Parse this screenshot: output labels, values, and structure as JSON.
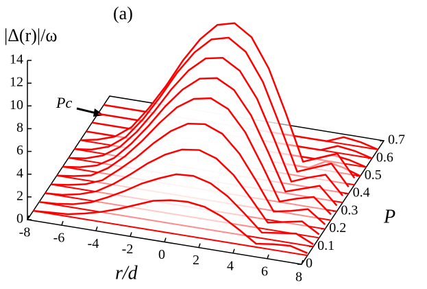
{
  "chart_data": {
    "type": "waterfall3d",
    "panel_label": "(a)",
    "z_label": "|Δ(r)|/ω",
    "x_label": "r/d",
    "y_label": "P",
    "annotation": "Pc",
    "color": "#ff0000",
    "xlim": [
      -8,
      8
    ],
    "xticks": [
      -8,
      -6,
      -4,
      -2,
      0,
      2,
      4,
      6,
      8
    ],
    "ylim": [
      0,
      0.7
    ],
    "yticks": [
      0,
      0.1,
      0.2,
      0.3,
      0.4,
      0.5,
      0.6,
      0.7
    ],
    "zlim": [
      0,
      14
    ],
    "zticks": [
      0,
      2,
      4,
      6,
      8,
      10,
      12,
      14
    ],
    "x": [
      -8,
      -7,
      -6,
      -5,
      -4,
      -3,
      -2,
      -1,
      0,
      1,
      2,
      3,
      4,
      5,
      6,
      7,
      8
    ],
    "series": [
      {
        "p": 0.65,
        "values": [
          0,
          0,
          0,
          0,
          0,
          0,
          0,
          0,
          0,
          0,
          0,
          0,
          0,
          0,
          0.6,
          0.4,
          0
        ]
      },
      {
        "p": 0.6,
        "values": [
          0,
          0,
          0,
          0,
          0,
          0,
          0,
          0,
          0,
          0,
          0,
          0,
          0,
          0,
          0.6,
          0.4,
          0
        ]
      },
      {
        "p": 0.55,
        "values": [
          0,
          0,
          0,
          0,
          0,
          0,
          0,
          0,
          0,
          0,
          0,
          0,
          0,
          0,
          0.6,
          0.4,
          0
        ]
      },
      {
        "p": 0.5,
        "values": [
          0,
          0,
          0,
          0,
          0,
          0,
          0,
          0,
          0,
          0,
          0,
          0,
          0,
          0,
          0.8,
          0.5,
          0
        ]
      },
      {
        "p": 0.45,
        "values": [
          0,
          0.3,
          0.8,
          1.9,
          3.8,
          6,
          8.5,
          10.6,
          12.1,
          12.5,
          11.5,
          9,
          5.3,
          1.3,
          1.9,
          2.5,
          0.6
        ]
      },
      {
        "p": 0.4,
        "values": [
          0,
          0.2,
          0.7,
          1.8,
          3.6,
          5.8,
          8.2,
          10.2,
          11.6,
          12,
          11,
          8.6,
          5,
          1.2,
          1.8,
          2.4,
          0.6
        ]
      },
      {
        "p": 0.35,
        "values": [
          0,
          0.2,
          0.7,
          1.7,
          3.3,
          5.3,
          7.5,
          9.4,
          10.7,
          11,
          10.1,
          7.9,
          4.6,
          1.1,
          1.7,
          2.2,
          0.6
        ]
      },
      {
        "p": 0.3,
        "values": [
          0,
          0.2,
          0.6,
          1.5,
          3,
          4.8,
          6.8,
          8.5,
          9.7,
          10,
          9.2,
          7.2,
          4.2,
          1,
          1.5,
          2,
          0.5
        ]
      },
      {
        "p": 0.25,
        "values": [
          0,
          0.2,
          0.5,
          1.4,
          2.7,
          4.3,
          6.1,
          7.7,
          8.7,
          9,
          8.3,
          6.5,
          3.8,
          0.9,
          1.4,
          1.8,
          0.5
        ]
      },
      {
        "p": 0.2,
        "values": [
          0,
          0.2,
          0.5,
          1.1,
          2.3,
          3.6,
          5.1,
          6.4,
          7.3,
          7.5,
          6.9,
          5.4,
          3.2,
          0.8,
          1.1,
          1.5,
          0.4
        ]
      },
      {
        "p": 0.15,
        "values": [
          0,
          0.1,
          0.4,
          0.9,
          1.8,
          2.9,
          4.1,
          5.1,
          5.8,
          6,
          5.5,
          4.3,
          2.5,
          0.6,
          0.9,
          1.2,
          0.3
        ]
      },
      {
        "p": 0.1,
        "values": [
          0,
          0.1,
          0.3,
          0.7,
          1.4,
          2.2,
          3.1,
          3.8,
          4.4,
          4.5,
          4.1,
          3.2,
          1.9,
          0.5,
          0.7,
          0.9,
          0.2
        ]
      },
      {
        "p": 0.05,
        "values": [
          0,
          0.1,
          0.2,
          0.5,
          0.9,
          1.4,
          2,
          2.6,
          2.9,
          3,
          2.8,
          2.2,
          1.3,
          0.3,
          0.5,
          0.6,
          0.2
        ]
      }
    ]
  }
}
